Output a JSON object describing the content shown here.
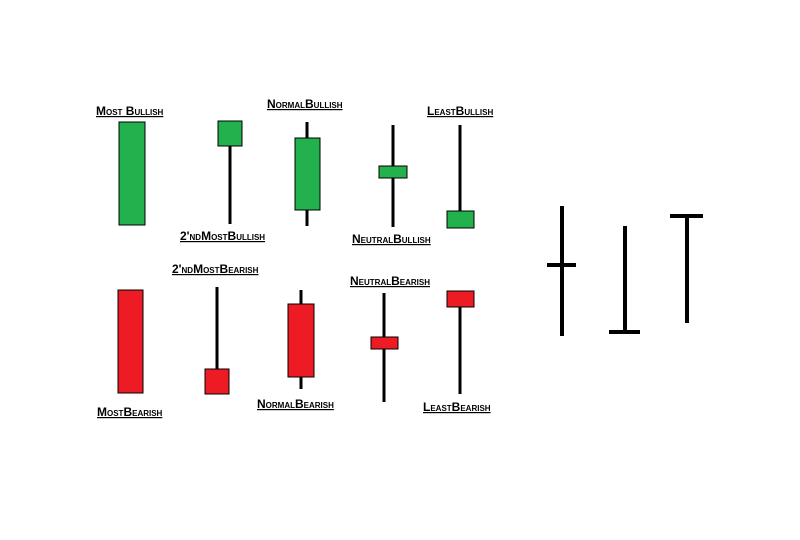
{
  "colors": {
    "bullish": "#22b14c",
    "bearish": "#ed1c24",
    "wick": "#000000",
    "background": "#ffffff"
  },
  "labels": {
    "most_bullish": "Most Bullish",
    "second_most_bullish": "2'ndMostBullish",
    "normal_bullish": "NormalBullish",
    "neutral_bullish": "NeutralBullish",
    "least_bullish": "LeastBullish",
    "second_most_bearish": "2'ndMostBearish",
    "neutral_bearish": "NeutralBearish",
    "most_bearish": "MostBearish",
    "normal_bearish": "NormalBearish",
    "least_bearish": "LeastBearish"
  },
  "candles": [
    {
      "id": "most-bullish",
      "color": "bullish"
    },
    {
      "id": "2nd-most-bullish",
      "color": "bullish"
    },
    {
      "id": "normal-bullish",
      "color": "bullish"
    },
    {
      "id": "neutral-bullish",
      "color": "bullish"
    },
    {
      "id": "least-bullish",
      "color": "bullish"
    },
    {
      "id": "most-bearish",
      "color": "bearish"
    },
    {
      "id": "2nd-most-bearish",
      "color": "bearish"
    },
    {
      "id": "normal-bearish",
      "color": "bearish"
    },
    {
      "id": "neutral-bearish",
      "color": "bearish"
    },
    {
      "id": "least-bearish",
      "color": "bearish"
    }
  ],
  "dojis": [
    {
      "id": "doji-middle-tick"
    },
    {
      "id": "doji-bottom-tick"
    },
    {
      "id": "doji-top-tick"
    }
  ]
}
